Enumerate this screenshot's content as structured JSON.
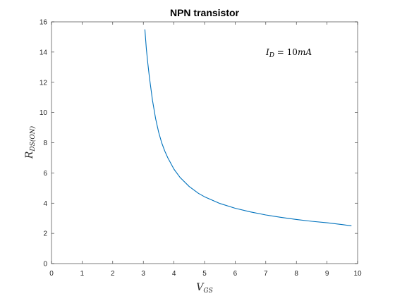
{
  "chart_data": {
    "type": "line",
    "title": "NPN transistor",
    "xlabel": {
      "main": "V",
      "sub": "GS"
    },
    "ylabel": {
      "main": "R",
      "sub": "DS(ON)"
    },
    "xlim": [
      0,
      10
    ],
    "ylim": [
      0,
      16
    ],
    "xticks": [
      0,
      1,
      2,
      3,
      4,
      5,
      6,
      7,
      8,
      9,
      10
    ],
    "yticks": [
      0,
      2,
      4,
      6,
      8,
      10,
      12,
      14,
      16
    ],
    "grid": false,
    "annotation": {
      "var": "I",
      "sub": "D",
      "eq": " = ",
      "value": "10",
      "unit": "mA"
    },
    "series": [
      {
        "color": "#0072bd",
        "x": [
          3.05,
          3.1,
          3.15,
          3.2,
          3.3,
          3.4,
          3.5,
          3.6,
          3.7,
          3.8,
          4.0,
          4.2,
          4.5,
          4.8,
          5.0,
          5.5,
          6.0,
          6.5,
          7.0,
          7.5,
          8.0,
          8.5,
          9.0,
          9.5,
          9.8
        ],
        "y": [
          15.5,
          14.2,
          13.2,
          12.3,
          10.8,
          9.6,
          8.7,
          8.0,
          7.45,
          7.0,
          6.25,
          5.7,
          5.1,
          4.65,
          4.42,
          3.98,
          3.66,
          3.42,
          3.22,
          3.06,
          2.92,
          2.8,
          2.7,
          2.58,
          2.5
        ]
      }
    ]
  }
}
